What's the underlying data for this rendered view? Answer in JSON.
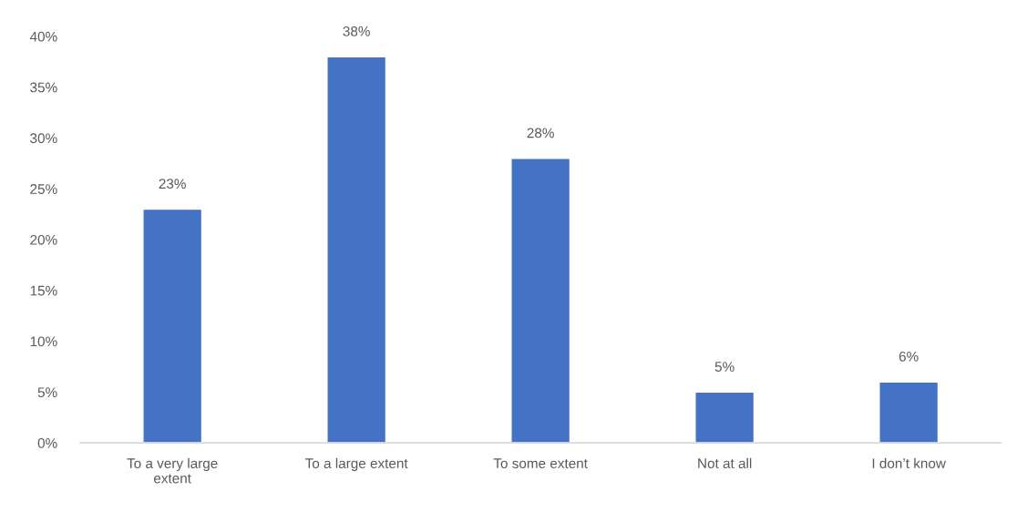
{
  "chart_data": {
    "type": "bar",
    "categories": [
      "To a very large\nextent",
      "To a large extent",
      "To some extent",
      "Not at all",
      "I don’t know"
    ],
    "values": [
      23,
      38,
      28,
      5,
      6
    ],
    "color": "#4472c4",
    "value_labels": [
      "23%",
      "38%",
      "28%",
      "5%",
      "6%"
    ],
    "ylim": [
      0,
      40
    ],
    "yticks": [
      {
        "value": 0,
        "label": "0%"
      },
      {
        "value": 5,
        "label": "5%"
      },
      {
        "value": 10,
        "label": "10%"
      },
      {
        "value": 15,
        "label": "15%"
      },
      {
        "value": 20,
        "label": "20%"
      },
      {
        "value": 25,
        "label": "25%"
      },
      {
        "value": 30,
        "label": "30%"
      },
      {
        "value": 35,
        "label": "35%"
      },
      {
        "value": 40,
        "label": "40%"
      }
    ],
    "grid": false,
    "legend": false
  }
}
